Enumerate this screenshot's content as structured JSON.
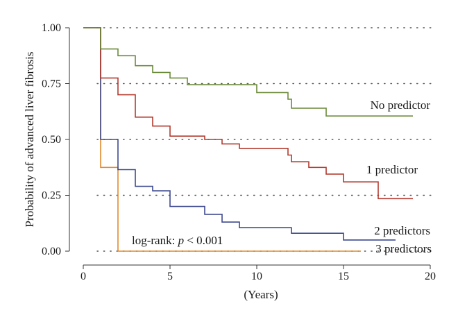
{
  "chart_data": {
    "type": "line",
    "step": true,
    "title": "",
    "xlabel": "(Years)",
    "ylabel": "Probability of advanced liver fibrosis",
    "xlim": [
      0,
      20
    ],
    "ylim": [
      0,
      1
    ],
    "x_ticks": [
      0,
      5,
      10,
      15,
      20
    ],
    "y_ticks": [
      0.0,
      0.25,
      0.5,
      0.75,
      1.0
    ],
    "x_tick_labels": [
      "0",
      "5",
      "10",
      "15",
      "20"
    ],
    "y_tick_labels": [
      "0.00",
      "0.25",
      "0.50",
      "0.75",
      "1.00"
    ],
    "grid": "horizontal dotted",
    "annotation": {
      "prefix": "log-rank: ",
      "italic": "p",
      "suffix": " < 0.001"
    },
    "series": [
      {
        "name": "No predictor",
        "color": "#6b8a3a",
        "points": [
          [
            0,
            1.0
          ],
          [
            1,
            1.0
          ],
          [
            1,
            0.905
          ],
          [
            2,
            0.905
          ],
          [
            2,
            0.875
          ],
          [
            3,
            0.875
          ],
          [
            3,
            0.83
          ],
          [
            4,
            0.83
          ],
          [
            4,
            0.8
          ],
          [
            5,
            0.8
          ],
          [
            5,
            0.775
          ],
          [
            6,
            0.775
          ],
          [
            6,
            0.745
          ],
          [
            10,
            0.745
          ],
          [
            10,
            0.71
          ],
          [
            11.8,
            0.71
          ],
          [
            11.8,
            0.68
          ],
          [
            12,
            0.68
          ],
          [
            12,
            0.64
          ],
          [
            14,
            0.64
          ],
          [
            14,
            0.605
          ],
          [
            19,
            0.605
          ]
        ]
      },
      {
        "name": "1 predictor",
        "color": "#b33a2e",
        "points": [
          [
            0,
            1.0
          ],
          [
            1,
            1.0
          ],
          [
            1,
            0.775
          ],
          [
            2,
            0.775
          ],
          [
            2,
            0.7
          ],
          [
            3,
            0.7
          ],
          [
            3,
            0.6
          ],
          [
            4,
            0.6
          ],
          [
            4,
            0.56
          ],
          [
            5,
            0.56
          ],
          [
            5,
            0.515
          ],
          [
            7,
            0.515
          ],
          [
            7,
            0.5
          ],
          [
            8,
            0.5
          ],
          [
            8,
            0.48
          ],
          [
            9,
            0.48
          ],
          [
            9,
            0.46
          ],
          [
            11.8,
            0.46
          ],
          [
            11.8,
            0.43
          ],
          [
            12,
            0.43
          ],
          [
            12,
            0.4
          ],
          [
            13,
            0.4
          ],
          [
            13,
            0.375
          ],
          [
            14,
            0.375
          ],
          [
            14,
            0.345
          ],
          [
            15,
            0.345
          ],
          [
            15,
            0.31
          ],
          [
            17,
            0.31
          ],
          [
            17,
            0.235
          ],
          [
            19,
            0.235
          ]
        ]
      },
      {
        "name": "2 predictors",
        "color": "#3d4a8f",
        "points": [
          [
            0,
            1.0
          ],
          [
            1,
            1.0
          ],
          [
            1,
            0.5
          ],
          [
            2,
            0.5
          ],
          [
            2,
            0.365
          ],
          [
            3,
            0.365
          ],
          [
            3,
            0.29
          ],
          [
            4,
            0.29
          ],
          [
            4,
            0.27
          ],
          [
            5,
            0.27
          ],
          [
            5,
            0.2
          ],
          [
            7,
            0.2
          ],
          [
            7,
            0.165
          ],
          [
            8,
            0.165
          ],
          [
            8,
            0.13
          ],
          [
            9,
            0.13
          ],
          [
            9,
            0.105
          ],
          [
            12,
            0.105
          ],
          [
            12,
            0.08
          ],
          [
            15,
            0.08
          ],
          [
            15,
            0.05
          ],
          [
            18,
            0.05
          ]
        ]
      },
      {
        "name": "3 predictors",
        "color": "#e08a2c",
        "points": [
          [
            0,
            1.0
          ],
          [
            1,
            1.0
          ],
          [
            1,
            0.375
          ],
          [
            2,
            0.375
          ],
          [
            2,
            0.0
          ],
          [
            16,
            0.0
          ]
        ]
      }
    ]
  }
}
